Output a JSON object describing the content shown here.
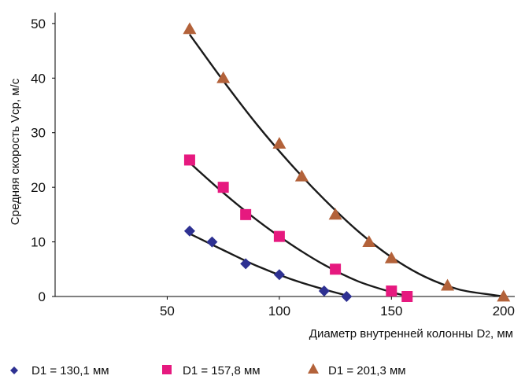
{
  "chart_data": {
    "type": "scatter",
    "xlabel": "Диаметр внутренней колонны D",
    "xlabel_sub": "2",
    "xlabel_unit": ", мм",
    "ylabel": "Средняя скорость Vср, м/с",
    "xlim": [
      0,
      205
    ],
    "ylim": [
      0,
      52
    ],
    "x_ticks": [
      50,
      100,
      150,
      200
    ],
    "y_ticks": [
      0,
      10,
      20,
      30,
      40,
      50
    ],
    "grid": false,
    "legend_position": "bottom",
    "series": [
      {
        "name": "D1 = 130,1 мм",
        "marker": "diamond",
        "color": "#2e3192",
        "points": [
          [
            60,
            12
          ],
          [
            70,
            10
          ],
          [
            85,
            6
          ],
          [
            100,
            4
          ],
          [
            120,
            1
          ],
          [
            130,
            0
          ]
        ],
        "trend": [
          [
            60,
            11.5
          ],
          [
            75,
            8.5
          ],
          [
            90,
            5.6
          ],
          [
            105,
            3.2
          ],
          [
            120,
            1.3
          ],
          [
            130,
            0.2
          ]
        ]
      },
      {
        "name": "D1 = 157,8 мм",
        "marker": "square",
        "color": "#e6197f",
        "points": [
          [
            60,
            25
          ],
          [
            75,
            20
          ],
          [
            85,
            15
          ],
          [
            100,
            11
          ],
          [
            125,
            5
          ],
          [
            150,
            1
          ],
          [
            157,
            0
          ]
        ],
        "trend": [
          [
            60,
            24.5
          ],
          [
            75,
            19
          ],
          [
            90,
            14
          ],
          [
            105,
            9.6
          ],
          [
            120,
            5.8
          ],
          [
            135,
            2.8
          ],
          [
            150,
            0.8
          ],
          [
            157,
            0.1
          ]
        ]
      },
      {
        "name": "D1 = 201,3 мм",
        "marker": "triangle",
        "color": "#b3623a",
        "points": [
          [
            60,
            49
          ],
          [
            75,
            40
          ],
          [
            100,
            28
          ],
          [
            110,
            22
          ],
          [
            125,
            15
          ],
          [
            140,
            10
          ],
          [
            150,
            7
          ],
          [
            175,
            2
          ],
          [
            200,
            0
          ]
        ],
        "trend": [
          [
            60,
            48
          ],
          [
            75,
            39.5
          ],
          [
            90,
            31.5
          ],
          [
            105,
            24.3
          ],
          [
            120,
            17.8
          ],
          [
            135,
            12
          ],
          [
            150,
            7.2
          ],
          [
            165,
            3.6
          ],
          [
            180,
            1.3
          ],
          [
            195,
            0.3
          ],
          [
            201,
            0
          ]
        ]
      }
    ]
  }
}
